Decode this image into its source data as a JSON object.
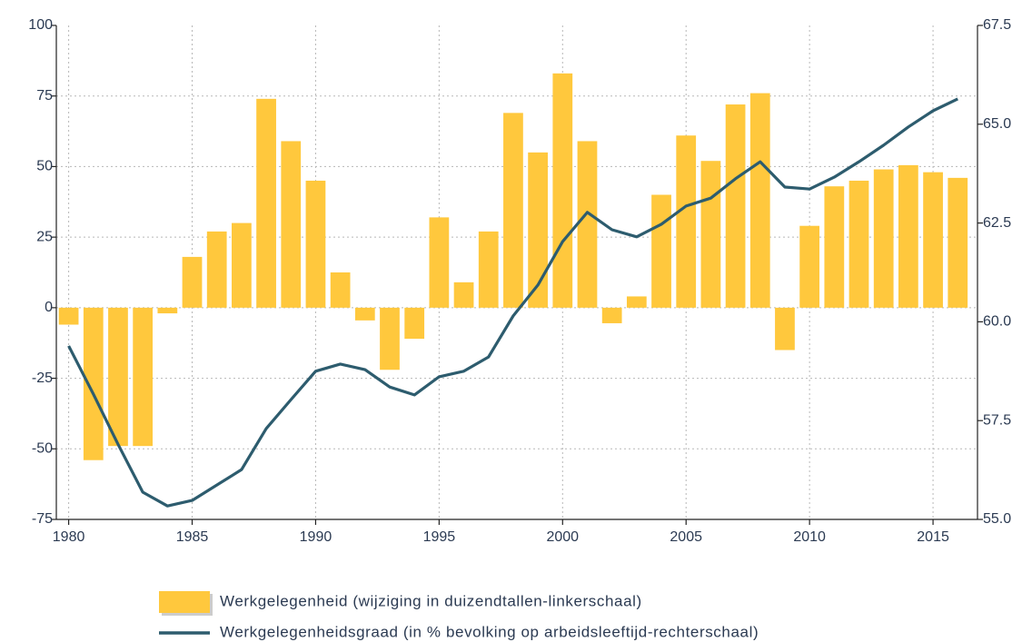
{
  "chart_data": {
    "type": "bar_line",
    "x": [
      1980,
      1981,
      1982,
      1983,
      1984,
      1985,
      1986,
      1987,
      1988,
      1989,
      1990,
      1991,
      1992,
      1993,
      1994,
      1995,
      1996,
      1997,
      1998,
      1999,
      2000,
      2001,
      2002,
      2003,
      2004,
      2005,
      2006,
      2007,
      2008,
      2009,
      2010,
      2011,
      2012,
      2013,
      2014,
      2015,
      2016
    ],
    "series": [
      {
        "name": "Werkgelegenheid (wijziging in duizendtallen-linkerschaal)",
        "type": "bar",
        "color": "#ffc83d",
        "values": [
          -6,
          -54,
          -49,
          -49,
          -2,
          18,
          27,
          30,
          74,
          59,
          45,
          12.5,
          -4.5,
          -22,
          -11,
          32,
          9,
          27,
          69,
          55,
          83,
          59,
          -5.5,
          4,
          40,
          61,
          52,
          72,
          76,
          -15,
          29,
          43,
          45,
          49,
          50.5,
          48,
          46
        ]
      },
      {
        "name": "Werkgelegenheidsgraad (in % bevolking op arbeidsleeftijd-rechterschaal)",
        "type": "line",
        "axis": "y2",
        "color": "#2d5c6e",
        "values": [
          59.39,
          58.17,
          56.9,
          55.69,
          55.34,
          55.48,
          55.87,
          56.26,
          57.3,
          58.03,
          58.75,
          58.93,
          58.79,
          58.35,
          58.15,
          58.61,
          58.75,
          59.11,
          60.15,
          60.93,
          62.03,
          62.77,
          62.33,
          62.15,
          62.47,
          62.93,
          63.13,
          63.62,
          64.05,
          63.41,
          63.36,
          63.66,
          64.05,
          64.47,
          64.93,
          65.34,
          65.64
        ]
      }
    ],
    "xlim": [
      1979.5,
      2016.8
    ],
    "xticks": [
      1980,
      1985,
      1990,
      1995,
      2000,
      2005,
      2010,
      2015
    ],
    "ylim": [
      -75,
      100
    ],
    "yticks": [
      -75,
      -50,
      -25,
      0,
      25,
      50,
      75,
      100
    ],
    "y2lim": [
      55,
      67.5
    ],
    "y2ticks": [
      {
        "value": 55,
        "label": "55.0"
      },
      57.5,
      {
        "value": 60,
        "label": "60.0"
      },
      62.5,
      {
        "value": 65,
        "label": "65.0"
      },
      67.5
    ],
    "grid": true
  }
}
